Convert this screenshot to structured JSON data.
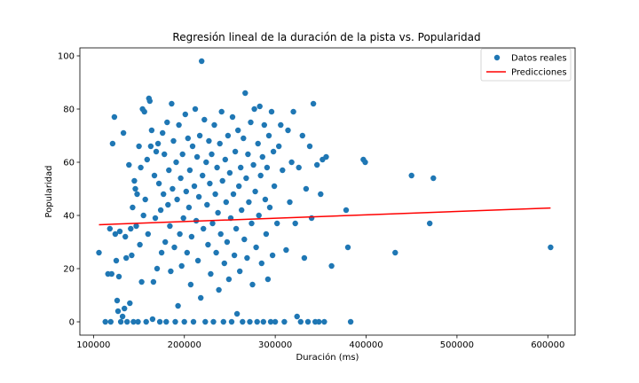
{
  "chart_data": {
    "type": "scatter",
    "title": "Regresión lineal de la duración de la pista vs. Popularidad",
    "xlabel": "Duración (ms)",
    "ylabel": "Popularidad",
    "xlim": [
      85000,
      630000
    ],
    "ylim": [
      -5,
      103
    ],
    "xticks": [
      100000,
      200000,
      300000,
      400000,
      500000,
      600000
    ],
    "xtick_labels": [
      "100000",
      "200000",
      "300000",
      "400000",
      "500000",
      "600000"
    ],
    "yticks": [
      0,
      20,
      40,
      60,
      80,
      100
    ],
    "ytick_labels": [
      "0",
      "20",
      "40",
      "60",
      "80",
      "100"
    ],
    "grid": false,
    "legend_position": "top-right",
    "series": [
      {
        "name": "Datos reales",
        "kind": "scatter",
        "color": "#1f77b4",
        "points": [
          [
            106000,
            26
          ],
          [
            113000,
            0
          ],
          [
            116000,
            18
          ],
          [
            118000,
            35
          ],
          [
            119000,
            0
          ],
          [
            120000,
            18
          ],
          [
            121000,
            67
          ],
          [
            123000,
            77
          ],
          [
            124000,
            33
          ],
          [
            125000,
            23
          ],
          [
            126000,
            8
          ],
          [
            127000,
            4
          ],
          [
            128000,
            17
          ],
          [
            129000,
            34
          ],
          [
            130000,
            0
          ],
          [
            132000,
            2
          ],
          [
            133000,
            71
          ],
          [
            134000,
            5
          ],
          [
            135000,
            32
          ],
          [
            136000,
            24
          ],
          [
            137000,
            0
          ],
          [
            139000,
            59
          ],
          [
            140000,
            7
          ],
          [
            141000,
            35
          ],
          [
            142000,
            25
          ],
          [
            143000,
            43
          ],
          [
            144000,
            0
          ],
          [
            145000,
            53
          ],
          [
            146000,
            50
          ],
          [
            147000,
            36
          ],
          [
            148000,
            48
          ],
          [
            149000,
            0
          ],
          [
            150000,
            66
          ],
          [
            151000,
            29
          ],
          [
            152000,
            58
          ],
          [
            153000,
            15
          ],
          [
            154000,
            80
          ],
          [
            155000,
            40
          ],
          [
            156000,
            79
          ],
          [
            157000,
            46
          ],
          [
            158000,
            0
          ],
          [
            159000,
            61
          ],
          [
            160000,
            33
          ],
          [
            161000,
            84
          ],
          [
            162000,
            83
          ],
          [
            163000,
            66
          ],
          [
            164000,
            72
          ],
          [
            165000,
            1
          ],
          [
            166000,
            15
          ],
          [
            167000,
            55
          ],
          [
            168000,
            39
          ],
          [
            169000,
            64
          ],
          [
            170000,
            20
          ],
          [
            171000,
            67
          ],
          [
            172000,
            52
          ],
          [
            173000,
            0
          ],
          [
            174000,
            42
          ],
          [
            175000,
            26
          ],
          [
            176000,
            71
          ],
          [
            177000,
            48
          ],
          [
            178000,
            63
          ],
          [
            179000,
            30
          ],
          [
            180000,
            0
          ],
          [
            181000,
            75
          ],
          [
            182000,
            44
          ],
          [
            183000,
            57
          ],
          [
            184000,
            36
          ],
          [
            185000,
            19
          ],
          [
            186000,
            82
          ],
          [
            187000,
            50
          ],
          [
            188000,
            68
          ],
          [
            189000,
            28
          ],
          [
            190000,
            0
          ],
          [
            191000,
            60
          ],
          [
            192000,
            46
          ],
          [
            193000,
            6
          ],
          [
            194000,
            74
          ],
          [
            195000,
            33
          ],
          [
            196000,
            54
          ],
          [
            197000,
            21
          ],
          [
            198000,
            63
          ],
          [
            199000,
            39
          ],
          [
            200000,
            0
          ],
          [
            201000,
            78
          ],
          [
            202000,
            49
          ],
          [
            203000,
            26
          ],
          [
            204000,
            69
          ],
          [
            205000,
            43
          ],
          [
            206000,
            57
          ],
          [
            207000,
            14
          ],
          [
            208000,
            32
          ],
          [
            209000,
            66
          ],
          [
            210000,
            0
          ],
          [
            211000,
            51
          ],
          [
            212000,
            80
          ],
          [
            213000,
            38
          ],
          [
            214000,
            62
          ],
          [
            215000,
            23
          ],
          [
            216000,
            47
          ],
          [
            217000,
            70
          ],
          [
            218000,
            9
          ],
          [
            219000,
            98
          ],
          [
            220000,
            55
          ],
          [
            221000,
            35
          ],
          [
            222000,
            76
          ],
          [
            223000,
            0
          ],
          [
            224000,
            60
          ],
          [
            225000,
            44
          ],
          [
            226000,
            29
          ],
          [
            227000,
            68
          ],
          [
            228000,
            52
          ],
          [
            229000,
            18
          ],
          [
            230000,
            63
          ],
          [
            231000,
            37
          ],
          [
            232000,
            0
          ],
          [
            233000,
            74
          ],
          [
            234000,
            48
          ],
          [
            235000,
            26
          ],
          [
            236000,
            58
          ],
          [
            237000,
            41
          ],
          [
            238000,
            12
          ],
          [
            239000,
            67
          ],
          [
            240000,
            33
          ],
          [
            241000,
            79
          ],
          [
            242000,
            53
          ],
          [
            243000,
            0
          ],
          [
            244000,
            22
          ],
          [
            245000,
            61
          ],
          [
            246000,
            45
          ],
          [
            247000,
            30
          ],
          [
            248000,
            70
          ],
          [
            249000,
            16
          ],
          [
            250000,
            56
          ],
          [
            251000,
            39
          ],
          [
            252000,
            0
          ],
          [
            253000,
            77
          ],
          [
            254000,
            48
          ],
          [
            255000,
            25
          ],
          [
            256000,
            64
          ],
          [
            257000,
            35
          ],
          [
            258000,
            3
          ],
          [
            259000,
            72
          ],
          [
            260000,
            51
          ],
          [
            261000,
            19
          ],
          [
            262000,
            58
          ],
          [
            263000,
            42
          ],
          [
            264000,
            0
          ],
          [
            265000,
            69
          ],
          [
            266000,
            31
          ],
          [
            267000,
            86
          ],
          [
            268000,
            54
          ],
          [
            269000,
            24
          ],
          [
            270000,
            63
          ],
          [
            271000,
            45
          ],
          [
            272000,
            0
          ],
          [
            273000,
            75
          ],
          [
            274000,
            37
          ],
          [
            275000,
            14
          ],
          [
            276000,
            59
          ],
          [
            277000,
            80
          ],
          [
            278000,
            49
          ],
          [
            279000,
            28
          ],
          [
            280000,
            0
          ],
          [
            281000,
            67
          ],
          [
            282000,
            40
          ],
          [
            283000,
            81
          ],
          [
            284000,
            55
          ],
          [
            285000,
            22
          ],
          [
            286000,
            62
          ],
          [
            287000,
            0
          ],
          [
            288000,
            74
          ],
          [
            289000,
            46
          ],
          [
            290000,
            33
          ],
          [
            291000,
            58
          ],
          [
            292000,
            16
          ],
          [
            293000,
            70
          ],
          [
            294000,
            43
          ],
          [
            295000,
            0
          ],
          [
            296000,
            79
          ],
          [
            297000,
            25
          ],
          [
            298000,
            64
          ],
          [
            299000,
            51
          ],
          [
            300000,
            0
          ],
          [
            302000,
            37
          ],
          [
            304000,
            66
          ],
          [
            306000,
            74
          ],
          [
            308000,
            57
          ],
          [
            310000,
            0
          ],
          [
            312000,
            27
          ],
          [
            314000,
            72
          ],
          [
            316000,
            45
          ],
          [
            318000,
            60
          ],
          [
            320000,
            79
          ],
          [
            322000,
            37
          ],
          [
            324000,
            2
          ],
          [
            326000,
            58
          ],
          [
            328000,
            0
          ],
          [
            330000,
            70
          ],
          [
            332000,
            24
          ],
          [
            334000,
            50
          ],
          [
            336000,
            0
          ],
          [
            338000,
            66
          ],
          [
            340000,
            39
          ],
          [
            342000,
            82
          ],
          [
            344000,
            0
          ],
          [
            346000,
            59
          ],
          [
            348000,
            0
          ],
          [
            350000,
            48
          ],
          [
            352000,
            61
          ],
          [
            354000,
            0
          ],
          [
            356000,
            62
          ],
          [
            362000,
            21
          ],
          [
            378000,
            42
          ],
          [
            380000,
            28
          ],
          [
            383000,
            0
          ],
          [
            397000,
            61
          ],
          [
            399000,
            60
          ],
          [
            432000,
            26
          ],
          [
            450000,
            55
          ],
          [
            470000,
            37
          ],
          [
            474000,
            54
          ],
          [
            603000,
            28
          ]
        ]
      },
      {
        "name": "Predicciones",
        "kind": "line",
        "color": "#ff0000",
        "x": [
          106000,
          603000
        ],
        "y": [
          36.5,
          42.8
        ]
      }
    ]
  }
}
